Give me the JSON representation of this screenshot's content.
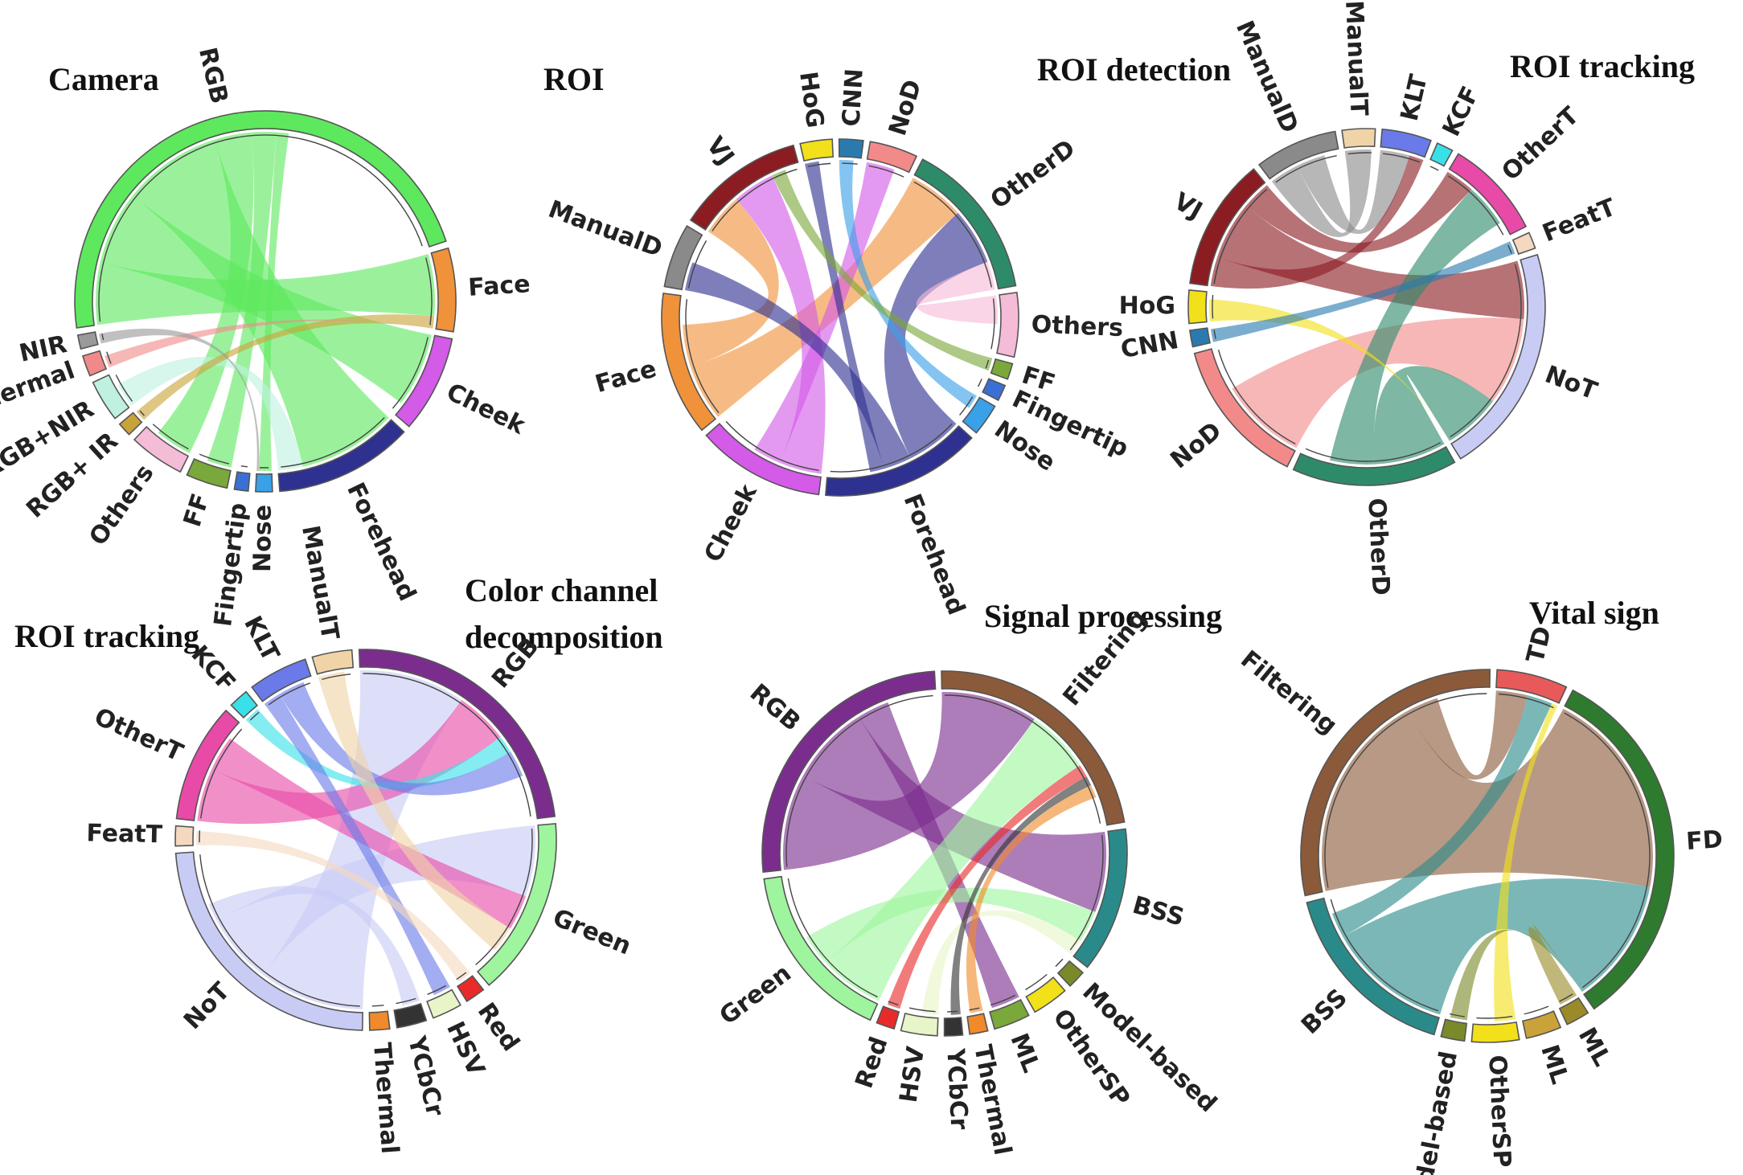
{
  "chart_data": [
    {
      "type": "chord",
      "title": "Camera",
      "segments": [
        {
          "label": "RGB",
          "color": "#5ee85e",
          "share": 40
        },
        {
          "label": "Face",
          "color": "#f0923a",
          "share": 6
        },
        {
          "label": "Cheek",
          "color": "#d45ae8",
          "share": 7
        },
        {
          "label": "Forehead",
          "color": "#2e3190",
          "share": 10
        },
        {
          "label": "Nose",
          "color": "#3aa0e8",
          "share": 1.2
        },
        {
          "label": "Fingertip",
          "color": "#3a6fd4",
          "share": 1
        },
        {
          "label": "FF",
          "color": "#7aa83a",
          "share": 3
        },
        {
          "label": "Others",
          "color": "#f5bcd8",
          "share": 4
        },
        {
          "label": "RGB+ IR",
          "color": "#c9a33a",
          "share": 1
        },
        {
          "label": "RGB+NIR",
          "color": "#bff0e0",
          "share": 3
        },
        {
          "label": "Thermal",
          "color": "#f08a8a",
          "share": 1.5
        },
        {
          "label": "NIR",
          "color": "#9a9a9a",
          "share": 1
        }
      ],
      "links": [
        {
          "from": "RGB",
          "to": "Face",
          "value": 5
        },
        {
          "from": "RGB",
          "to": "Cheek",
          "value": 6
        },
        {
          "from": "RGB",
          "to": "Forehead",
          "value": 8
        },
        {
          "from": "RGB",
          "to": "Others",
          "value": 3
        },
        {
          "from": "RGB",
          "to": "FF",
          "value": 2
        },
        {
          "from": "RGB",
          "to": "Nose",
          "value": 1
        },
        {
          "from": "RGB+NIR",
          "to": "Forehead",
          "value": 2
        },
        {
          "from": "RGB+ IR",
          "to": "Face",
          "value": 1
        },
        {
          "from": "Thermal",
          "to": "Face",
          "value": 1
        },
        {
          "from": "NIR",
          "to": "Nose",
          "value": 0.8
        }
      ]
    },
    {
      "type": "chord",
      "title": "ROI",
      "segments": [
        {
          "label": "ManualD",
          "color": "#8a8a8a",
          "share": 4
        },
        {
          "label": "VJ",
          "color": "#8b1c22",
          "share": 8
        },
        {
          "label": "HoG",
          "color": "#f2e01a",
          "share": 2
        },
        {
          "label": "CNN",
          "color": "#2a7ab0",
          "share": 1.5
        },
        {
          "label": "NoD",
          "color": "#f28a8a",
          "share": 3
        },
        {
          "label": "OtherD",
          "color": "#2e8b6a",
          "share": 10
        },
        {
          "label": "Others",
          "color": "#f5bcd8",
          "share": 4
        },
        {
          "label": "FF",
          "color": "#7aa83a",
          "share": 1
        },
        {
          "label": "Fingertip",
          "color": "#3a6fd4",
          "share": 1
        },
        {
          "label": "Nose",
          "color": "#3aa0e8",
          "share": 2
        },
        {
          "label": "Forehead",
          "color": "#2e3190",
          "share": 10
        },
        {
          "label": "Cheek",
          "color": "#d45ae8",
          "share": 8
        },
        {
          "label": "Face",
          "color": "#f0923a",
          "share": 9
        }
      ],
      "links": [
        {
          "from": "Face",
          "to": "OtherD",
          "value": 4
        },
        {
          "from": "Face",
          "to": "VJ",
          "value": 3
        },
        {
          "from": "Cheek",
          "to": "VJ",
          "value": 3
        },
        {
          "from": "Cheek",
          "to": "NoD",
          "value": 2
        },
        {
          "from": "Forehead",
          "to": "OtherD",
          "value": 4
        },
        {
          "from": "Forehead",
          "to": "ManualD",
          "value": 2
        },
        {
          "from": "Forehead",
          "to": "HoG",
          "value": 1
        },
        {
          "from": "Nose",
          "to": "CNN",
          "value": 1
        },
        {
          "from": "FF",
          "to": "VJ",
          "value": 1
        },
        {
          "from": "Others",
          "to": "OtherD",
          "value": 2
        }
      ]
    },
    {
      "type": "chord",
      "title": "ROI detection / ROI tracking",
      "title_left": "ROI detection",
      "title_right": "ROI tracking",
      "segments": [
        {
          "label": "ManualT",
          "color": "#f0d4a8",
          "share": 2
        },
        {
          "label": "KLT",
          "color": "#6a7ae8",
          "share": 3
        },
        {
          "label": "KCF",
          "color": "#3ae0e8",
          "share": 1
        },
        {
          "label": "OtherT",
          "color": "#e84aa8",
          "share": 6
        },
        {
          "label": "FeatT",
          "color": "#f5d8c0",
          "share": 1
        },
        {
          "label": "NoT",
          "color": "#c8ccf5",
          "share": 14
        },
        {
          "label": "OtherD",
          "color": "#2e8b6a",
          "share": 10
        },
        {
          "label": "NoD",
          "color": "#f28a8a",
          "share": 9
        },
        {
          "label": "CNN",
          "color": "#2a7ab0",
          "share": 1
        },
        {
          "label": "HoG",
          "color": "#f2e01a",
          "share": 2
        },
        {
          "label": "VJ",
          "color": "#8b1c22",
          "share": 8
        },
        {
          "label": "ManualD",
          "color": "#8a8a8a",
          "share": 5
        }
      ],
      "links": [
        {
          "from": "ManualD",
          "to": "ManualT",
          "value": 2
        },
        {
          "from": "ManualD",
          "to": "KLT",
          "value": 2
        },
        {
          "from": "VJ",
          "to": "KLT",
          "value": 2
        },
        {
          "from": "VJ",
          "to": "NoT",
          "value": 4
        },
        {
          "from": "VJ",
          "to": "OtherT",
          "value": 2
        },
        {
          "from": "NoD",
          "to": "NoT",
          "value": 6
        },
        {
          "from": "OtherD",
          "to": "NoT",
          "value": 5
        },
        {
          "from": "OtherD",
          "to": "OtherT",
          "value": 3
        },
        {
          "from": "HoG",
          "to": "NoT",
          "value": 1.5
        },
        {
          "from": "CNN",
          "to": "FeatT",
          "value": 1
        }
      ]
    },
    {
      "type": "chord",
      "title": "ROI tracking / Color channel decomposition",
      "title_left": "ROI tracking",
      "title_right_line1": "Color channel",
      "title_right_line2": "decomposition",
      "segments": [
        {
          "label": "RGB",
          "color": "#7b2d8e",
          "share": 14
        },
        {
          "label": "Green",
          "color": "#9ef59e",
          "share": 9
        },
        {
          "label": "Red",
          "color": "#e82a2a",
          "share": 1
        },
        {
          "label": "HSV",
          "color": "#e8f5c8",
          "share": 1.5
        },
        {
          "label": "YCbCr",
          "color": "#333333",
          "share": 1.5
        },
        {
          "label": "Thermal",
          "color": "#f08a2a",
          "share": 1
        },
        {
          "label": "NoT",
          "color": "#c8ccf5",
          "share": 14
        },
        {
          "label": "FeatT",
          "color": "#f5d8c0",
          "share": 1
        },
        {
          "label": "OtherT",
          "color": "#e84aa8",
          "share": 6
        },
        {
          "label": "KCF",
          "color": "#3ae0e8",
          "share": 1
        },
        {
          "label": "KLT",
          "color": "#6a7ae8",
          "share": 3
        },
        {
          "label": "ManualT",
          "color": "#f0d4a8",
          "share": 2
        }
      ],
      "links": [
        {
          "from": "NoT",
          "to": "RGB",
          "value": 6
        },
        {
          "from": "NoT",
          "to": "Green",
          "value": 4
        },
        {
          "from": "NoT",
          "to": "YCbCr",
          "value": 1
        },
        {
          "from": "OtherT",
          "to": "RGB",
          "value": 3
        },
        {
          "from": "OtherT",
          "to": "Green",
          "value": 2
        },
        {
          "from": "KCF",
          "to": "RGB",
          "value": 1
        },
        {
          "from": "KLT",
          "to": "HSV",
          "value": 1
        },
        {
          "from": "KLT",
          "to": "RGB",
          "value": 1.5
        },
        {
          "from": "ManualT",
          "to": "Green",
          "value": 1.5
        },
        {
          "from": "FeatT",
          "to": "Red",
          "value": 0.8
        }
      ]
    },
    {
      "type": "chord",
      "title": "Signal processing",
      "segments": [
        {
          "label": "Filtering",
          "color": "#8b5a3a",
          "share": 14
        },
        {
          "label": "BSS",
          "color": "#2a8a8a",
          "share": 8
        },
        {
          "label": "Model-based",
          "color": "#7a8a2a",
          "share": 1
        },
        {
          "label": "OtherSP",
          "color": "#f2e01a",
          "share": 2
        },
        {
          "label": "ML",
          "color": "#7aa83a",
          "share": 2
        },
        {
          "label": "Thermal",
          "color": "#f08a2a",
          "share": 1
        },
        {
          "label": "YCbCr",
          "color": "#333333",
          "share": 1
        },
        {
          "label": "HSV",
          "color": "#e8f5c8",
          "share": 2
        },
        {
          "label": "Red",
          "color": "#e82a2a",
          "share": 1
        },
        {
          "label": "Green",
          "color": "#9ef59e",
          "share": 10
        },
        {
          "label": "RGB",
          "color": "#7b2d8e",
          "share": 16
        }
      ],
      "links": [
        {
          "from": "RGB",
          "to": "Filtering",
          "value": 6
        },
        {
          "from": "RGB",
          "to": "BSS",
          "value": 5
        },
        {
          "from": "RGB",
          "to": "ML",
          "value": 2
        },
        {
          "from": "Green",
          "to": "Filtering",
          "value": 4
        },
        {
          "from": "Green",
          "to": "BSS",
          "value": 2
        },
        {
          "from": "Red",
          "to": "Filtering",
          "value": 0.8
        },
        {
          "from": "HSV",
          "to": "BSS",
          "value": 1
        },
        {
          "from": "YCbCr",
          "to": "Filtering",
          "value": 0.6
        },
        {
          "from": "Thermal",
          "to": "Filtering",
          "value": 0.8
        }
      ]
    },
    {
      "type": "chord",
      "title": "Vital sign",
      "segments": [
        {
          "label": "TD",
          "color": "#e85a5a",
          "share": 3
        },
        {
          "label": "FD",
          "color": "#2e7a2e",
          "share": 16
        },
        {
          "label": "ML",
          "color": "#9a8a2a",
          "share": 1
        },
        {
          "label": "ML",
          "color": "#c9a33a",
          "share": 1.5
        },
        {
          "label": "OtherSP",
          "color": "#f2e01a",
          "share": 2
        },
        {
          "label": "Model-based",
          "color": "#7a8a2a",
          "share": 1
        },
        {
          "label": "BSS",
          "color": "#2a8a8a",
          "share": 8
        },
        {
          "label": "Filtering",
          "color": "#8b5a3a",
          "share": 14
        }
      ],
      "links": [
        {
          "from": "Filtering",
          "to": "FD",
          "value": 10
        },
        {
          "from": "Filtering",
          "to": "TD",
          "value": 1.5
        },
        {
          "from": "BSS",
          "to": "FD",
          "value": 6
        },
        {
          "from": "BSS",
          "to": "TD",
          "value": 1.2
        },
        {
          "from": "OtherSP",
          "to": "TD",
          "value": 1
        },
        {
          "from": "ML",
          "to": "FD",
          "value": 1
        },
        {
          "from": "Model-based",
          "to": "FD",
          "value": 0.8
        }
      ]
    }
  ]
}
